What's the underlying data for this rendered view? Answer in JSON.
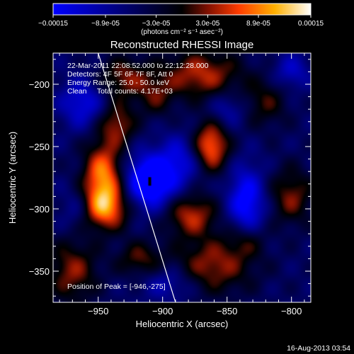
{
  "chart_data": {
    "type": "heatmap",
    "title": "Reconstructed RHESSI Image",
    "xlabel": "Heliocentric X (arcsec)",
    "ylabel": "Heliocentric Y (arcsec)",
    "xlim": [
      -985,
      -785
    ],
    "ylim": [
      -375,
      -175
    ],
    "x_ticks": [
      -950,
      -900,
      -850,
      -800
    ],
    "y_ticks": [
      -200,
      -250,
      -300,
      -350
    ],
    "colorbar": {
      "ticks": [
        "-0.00015",
        "-8.9e-05",
        "-3.0e-05",
        "3.0e-05",
        "8.9e-05",
        "0.00015"
      ],
      "range": [
        -0.00015,
        0.00015
      ],
      "unit_label": "(photons cm⁻² s⁻¹ asec⁻²)"
    },
    "annotations": [
      "22-Mar-2011 22:08:52.000 to 22:12:28.000",
      "Detectors: 4F 5F 6F 7F 8F, Att 0",
      "Energy Range: 25.0 - 50.0 keV",
      "Clean     Total counts: 4.17E+03"
    ],
    "peak_label": "Position of Peak = [-946,-275]",
    "limb_line": [
      [
        -950,
        -175
      ],
      [
        -890,
        -375
      ]
    ],
    "blobs": [
      {
        "x": -946,
        "y": -275,
        "amp": 0.00015,
        "sx": 11,
        "sy": 20
      },
      {
        "x": -945,
        "y": -300,
        "amp": 0.00011,
        "sx": 14,
        "sy": 12
      },
      {
        "x": -935,
        "y": -232,
        "amp": 8.5e-05,
        "sx": 10,
        "sy": 12
      },
      {
        "x": -930,
        "y": -195,
        "amp": 8e-05,
        "sx": 14,
        "sy": 12
      },
      {
        "x": -870,
        "y": -192,
        "amp": 0.0001,
        "sx": 22,
        "sy": 14
      },
      {
        "x": -863,
        "y": -250,
        "amp": 0.00014,
        "sx": 10,
        "sy": 14
      },
      {
        "x": -878,
        "y": -305,
        "amp": 0.0001,
        "sx": 14,
        "sy": 12
      },
      {
        "x": -860,
        "y": -345,
        "amp": 9e-05,
        "sx": 22,
        "sy": 16
      },
      {
        "x": -970,
        "y": -350,
        "amp": 8.5e-05,
        "sx": 14,
        "sy": 18
      },
      {
        "x": -800,
        "y": -290,
        "amp": 8e-05,
        "sx": 12,
        "sy": 16
      },
      {
        "x": -918,
        "y": -340,
        "amp": 7e-05,
        "sx": 12,
        "sy": 10
      },
      {
        "x": -835,
        "y": -325,
        "amp": 6e-05,
        "sx": 10,
        "sy": 10
      },
      {
        "x": -820,
        "y": -215,
        "amp": 6e-05,
        "sx": 12,
        "sy": 14
      },
      {
        "x": -905,
        "y": -210,
        "amp": 5.5e-05,
        "sx": 10,
        "sy": 12
      },
      {
        "x": -910,
        "y": -278,
        "amp": -0.00015,
        "sx": 14,
        "sy": 15
      },
      {
        "x": -835,
        "y": -295,
        "amp": -0.00011,
        "sx": 10,
        "sy": 20
      },
      {
        "x": -962,
        "y": -215,
        "amp": -8e-05,
        "sx": 12,
        "sy": 14
      },
      {
        "x": -885,
        "y": -260,
        "amp": -7e-05,
        "sx": 12,
        "sy": 14
      },
      {
        "x": -800,
        "y": -190,
        "amp": -6e-05,
        "sx": 10,
        "sy": 10
      },
      {
        "x": -850,
        "y": -220,
        "amp": -5e-05,
        "sx": 10,
        "sy": 10
      },
      {
        "x": -965,
        "y": -300,
        "amp": -5e-05,
        "sx": 10,
        "sy": 12
      },
      {
        "x": -895,
        "y": -360,
        "amp": -5.5e-05,
        "sx": 14,
        "sy": 10
      }
    ]
  },
  "footer": {
    "timestamp": "16-Aug-2013 03:54"
  }
}
